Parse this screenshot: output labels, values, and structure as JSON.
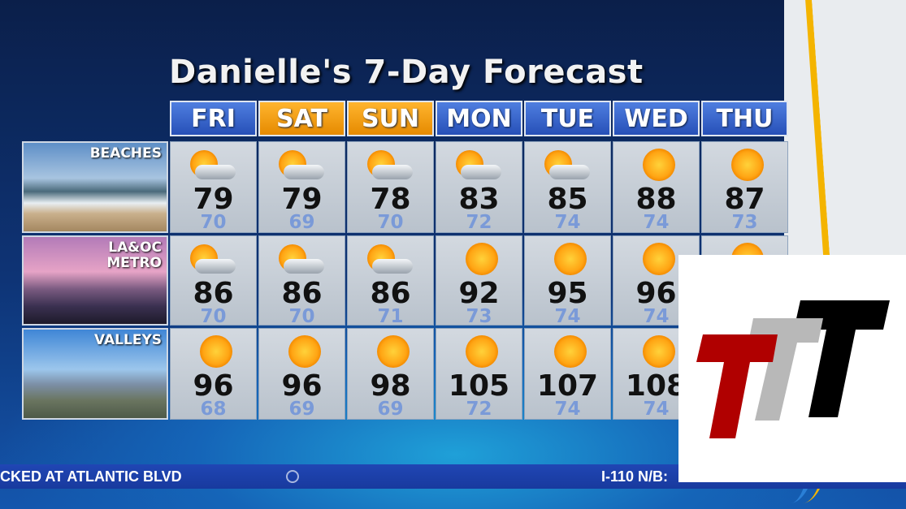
{
  "title": "Danielle's 7-Day Forecast",
  "days": [
    {
      "label": "FRI",
      "weekend": false
    },
    {
      "label": "SAT",
      "weekend": true
    },
    {
      "label": "SUN",
      "weekend": true
    },
    {
      "label": "MON",
      "weekend": false
    },
    {
      "label": "TUE",
      "weekend": false
    },
    {
      "label": "WED",
      "weekend": false
    },
    {
      "label": "THU",
      "weekend": false
    }
  ],
  "regions": [
    {
      "name": "BEACHES",
      "cells": [
        {
          "hi": "79",
          "lo": "70",
          "icon": "partly-cloudy"
        },
        {
          "hi": "79",
          "lo": "69",
          "icon": "partly-cloudy"
        },
        {
          "hi": "78",
          "lo": "70",
          "icon": "partly-cloudy"
        },
        {
          "hi": "83",
          "lo": "72",
          "icon": "partly-cloudy"
        },
        {
          "hi": "85",
          "lo": "74",
          "icon": "partly-cloudy"
        },
        {
          "hi": "88",
          "lo": "74",
          "icon": "sunny"
        },
        {
          "hi": "87",
          "lo": "73",
          "icon": "sunny"
        }
      ]
    },
    {
      "name": "LA&OC\nMETRO",
      "cells": [
        {
          "hi": "86",
          "lo": "70",
          "icon": "partly-cloudy"
        },
        {
          "hi": "86",
          "lo": "70",
          "icon": "partly-cloudy"
        },
        {
          "hi": "86",
          "lo": "71",
          "icon": "partly-cloudy"
        },
        {
          "hi": "92",
          "lo": "73",
          "icon": "sunny"
        },
        {
          "hi": "95",
          "lo": "74",
          "icon": "sunny"
        },
        {
          "hi": "96",
          "lo": "74",
          "icon": "sunny"
        },
        {
          "hi": "",
          "lo": "",
          "icon": "sunny"
        }
      ]
    },
    {
      "name": "VALLEYS",
      "cells": [
        {
          "hi": "96",
          "lo": "68",
          "icon": "sunny"
        },
        {
          "hi": "96",
          "lo": "69",
          "icon": "sunny"
        },
        {
          "hi": "98",
          "lo": "69",
          "icon": "sunny"
        },
        {
          "hi": "105",
          "lo": "72",
          "icon": "sunny"
        },
        {
          "hi": "107",
          "lo": "74",
          "icon": "sunny"
        },
        {
          "hi": "108",
          "lo": "74",
          "icon": "sunny"
        },
        {
          "hi": "",
          "lo": "",
          "icon": "sunny"
        }
      ]
    }
  ],
  "ticker": {
    "left": "CKED AT ATLANTIC BLVD",
    "right": "I-110 N/B:"
  },
  "colors": {
    "weekend": "#f0a000",
    "weekday": "#3a64cc",
    "logo_red": "#b00000",
    "logo_gray": "#b8b8b8",
    "logo_black": "#000000"
  }
}
